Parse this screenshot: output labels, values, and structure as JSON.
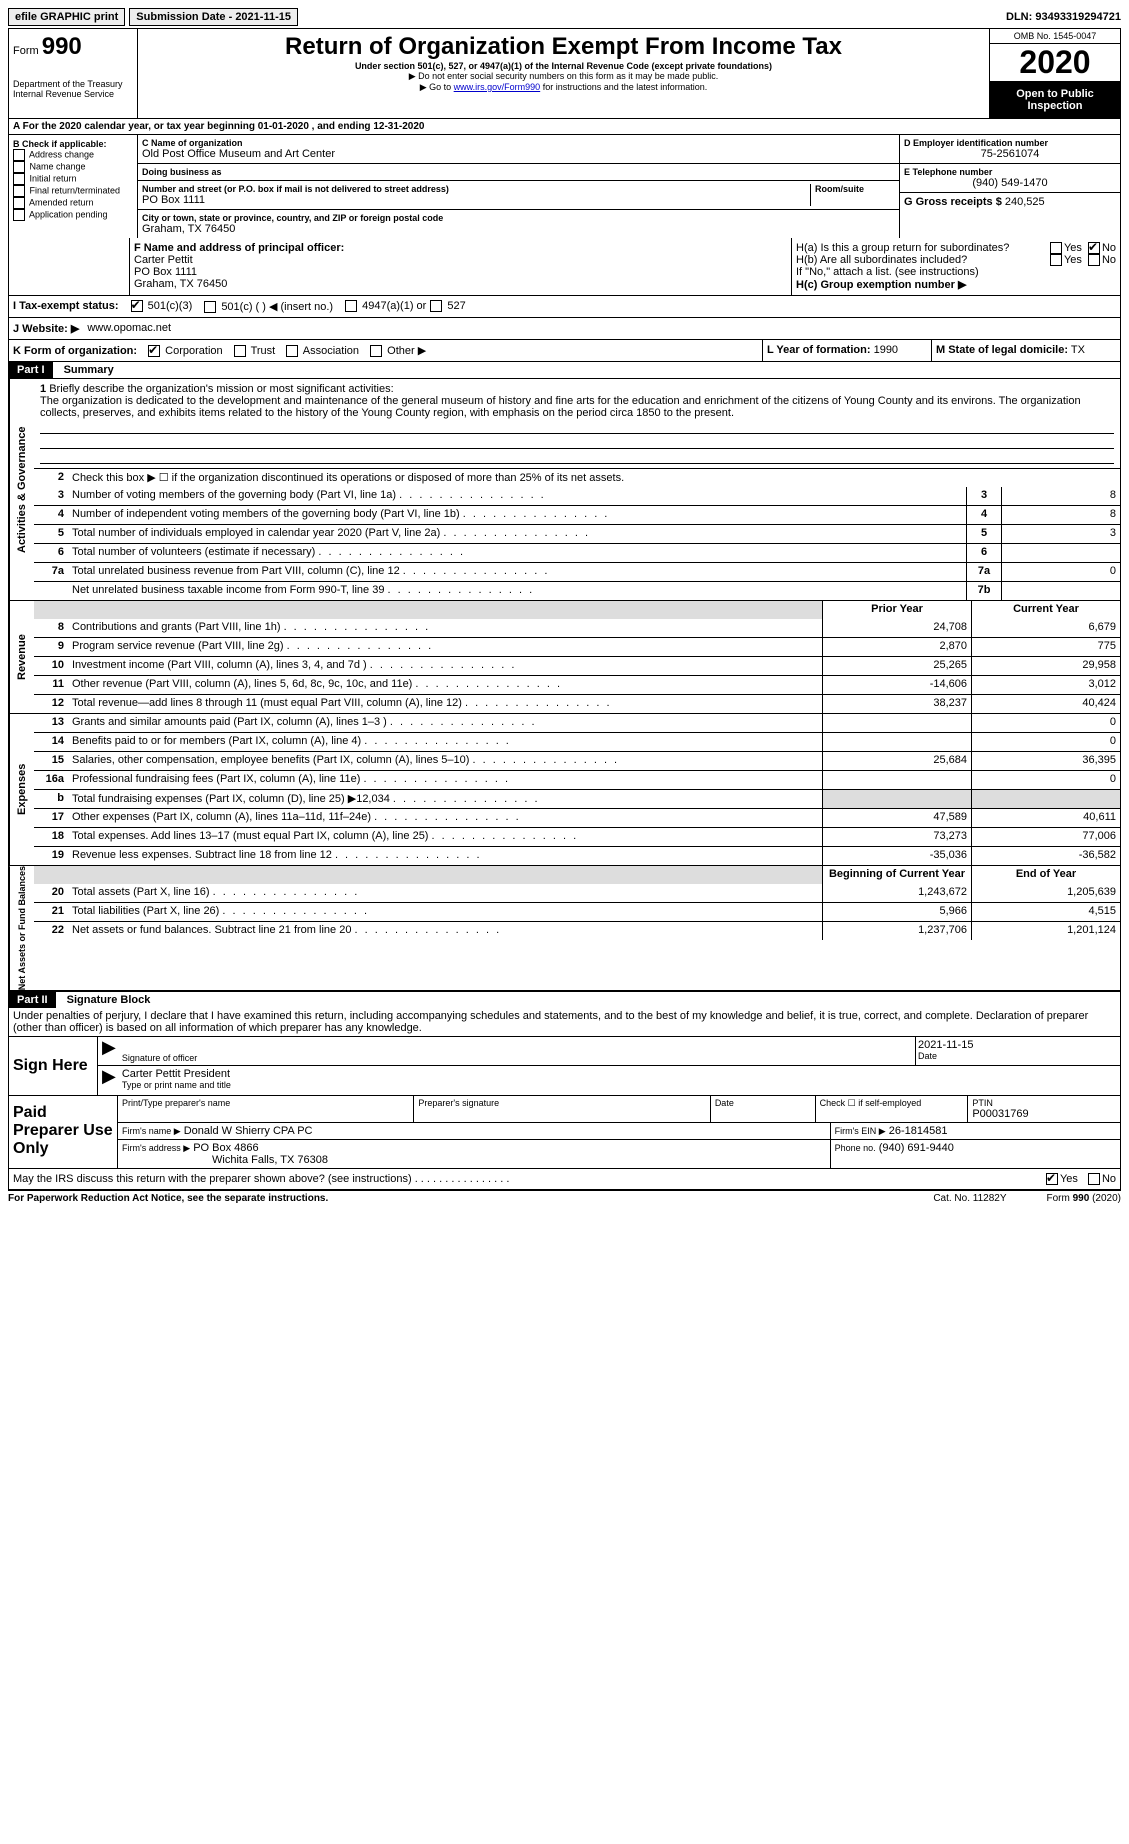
{
  "topbar": {
    "efile": "efile GRAPHIC print",
    "submission": "Submission Date - 2021-11-15",
    "dln": "DLN: 93493319294721"
  },
  "header": {
    "form_label": "Form",
    "form_num": "990",
    "dept": "Department of the Treasury",
    "irs": "Internal Revenue Service",
    "title": "Return of Organization Exempt From Income Tax",
    "subtitle": "Under section 501(c), 527, or 4947(a)(1) of the Internal Revenue Code (except private foundations)",
    "note1": "▶ Do not enter social security numbers on this form as it may be made public.",
    "note2": "▶ Go to www.irs.gov/Form990 for instructions and the latest information.",
    "omb": "OMB No. 1545-0047",
    "year": "2020",
    "open": "Open to Public Inspection"
  },
  "sectionA": "A For the 2020 calendar year, or tax year beginning 01-01-2020    , and ending 12-31-2020",
  "boxB": {
    "title": "B Check if applicable:",
    "opts": [
      "Address change",
      "Name change",
      "Initial return",
      "Final return/terminated",
      "Amended return",
      "Application pending"
    ]
  },
  "boxC": {
    "label": "C Name of organization",
    "name": "Old Post Office Museum and Art Center",
    "dba_label": "Doing business as",
    "addr_label": "Number and street (or P.O. box if mail is not delivered to street address)",
    "room_label": "Room/suite",
    "addr": "PO Box 1111",
    "city_label": "City or town, state or province, country, and ZIP or foreign postal code",
    "city": "Graham, TX  76450"
  },
  "boxD": {
    "label": "D Employer identification number",
    "val": "75-2561074"
  },
  "boxE": {
    "label": "E Telephone number",
    "val": "(940) 549-1470"
  },
  "boxG": {
    "label": "G Gross receipts $",
    "val": "240,525"
  },
  "boxF": {
    "label": "F Name and address of principal officer:",
    "name": "Carter Pettit",
    "addr1": "PO Box 1111",
    "addr2": "Graham, TX  76450"
  },
  "boxH": {
    "ha": "H(a)  Is this a group return for subordinates?",
    "hb": "H(b)  Are all subordinates included?",
    "hnote": "If \"No,\" attach a list. (see instructions)",
    "hc": "H(c)  Group exemption number ▶",
    "yes": "Yes",
    "no": "No"
  },
  "rowI": {
    "label": "I  Tax-exempt status:",
    "o1": "501(c)(3)",
    "o2": "501(c) (   ) ◀ (insert no.)",
    "o3": "4947(a)(1) or",
    "o4": "527"
  },
  "rowJ": {
    "label": "J  Website: ▶",
    "val": "www.opomac.net"
  },
  "rowK": {
    "label": "K Form of organization:",
    "o1": "Corporation",
    "o2": "Trust",
    "o3": "Association",
    "o4": "Other ▶"
  },
  "rowL": {
    "label": "L Year of formation:",
    "val": "1990"
  },
  "rowM": {
    "label": "M State of legal domicile:",
    "val": "TX"
  },
  "part1": {
    "header": "Part I",
    "title": "Summary",
    "l1": "Briefly describe the organization's mission or most significant activities:",
    "mission": "The organization is dedicated to the development and maintenance of the general museum of history and fine arts for the education and enrichment of the citizens of Young County and its environs. The organization collects, preserves, and exhibits items related to the history of the Young County region, with emphasis on the period circa 1850 to the present.",
    "l2": "Check this box ▶ ☐ if the organization discontinued its operations or disposed of more than 25% of its net assets.",
    "tabs": {
      "ag": "Activities & Governance",
      "rev": "Revenue",
      "exp": "Expenses",
      "net": "Net Assets or Fund Balances"
    },
    "lines_gov": [
      {
        "n": "3",
        "t": "Number of voting members of the governing body (Part VI, line 1a)",
        "box": "3",
        "v": "8"
      },
      {
        "n": "4",
        "t": "Number of independent voting members of the governing body (Part VI, line 1b)",
        "box": "4",
        "v": "8"
      },
      {
        "n": "5",
        "t": "Total number of individuals employed in calendar year 2020 (Part V, line 2a)",
        "box": "5",
        "v": "3"
      },
      {
        "n": "6",
        "t": "Total number of volunteers (estimate if necessary)",
        "box": "6",
        "v": ""
      },
      {
        "n": "7a",
        "t": "Total unrelated business revenue from Part VIII, column (C), line 12",
        "box": "7a",
        "v": "0"
      },
      {
        "n": "",
        "t": "Net unrelated business taxable income from Form 990-T, line 39",
        "box": "7b",
        "v": ""
      }
    ],
    "col_headers": {
      "py": "Prior Year",
      "cy": "Current Year"
    },
    "lines_rev": [
      {
        "n": "8",
        "t": "Contributions and grants (Part VIII, line 1h)",
        "py": "24,708",
        "cy": "6,679"
      },
      {
        "n": "9",
        "t": "Program service revenue (Part VIII, line 2g)",
        "py": "2,870",
        "cy": "775"
      },
      {
        "n": "10",
        "t": "Investment income (Part VIII, column (A), lines 3, 4, and 7d )",
        "py": "25,265",
        "cy": "29,958"
      },
      {
        "n": "11",
        "t": "Other revenue (Part VIII, column (A), lines 5, 6d, 8c, 9c, 10c, and 11e)",
        "py": "-14,606",
        "cy": "3,012"
      },
      {
        "n": "12",
        "t": "Total revenue—add lines 8 through 11 (must equal Part VIII, column (A), line 12)",
        "py": "38,237",
        "cy": "40,424"
      }
    ],
    "lines_exp": [
      {
        "n": "13",
        "t": "Grants and similar amounts paid (Part IX, column (A), lines 1–3 )",
        "py": "",
        "cy": "0"
      },
      {
        "n": "14",
        "t": "Benefits paid to or for members (Part IX, column (A), line 4)",
        "py": "",
        "cy": "0"
      },
      {
        "n": "15",
        "t": "Salaries, other compensation, employee benefits (Part IX, column (A), lines 5–10)",
        "py": "25,684",
        "cy": "36,395"
      },
      {
        "n": "16a",
        "t": "Professional fundraising fees (Part IX, column (A), line 11e)",
        "py": "",
        "cy": "0"
      },
      {
        "n": "b",
        "t": "Total fundraising expenses (Part IX, column (D), line 25) ▶12,034",
        "py": "",
        "cy": "",
        "shaded": true
      },
      {
        "n": "17",
        "t": "Other expenses (Part IX, column (A), lines 11a–11d, 11f–24e)",
        "py": "47,589",
        "cy": "40,611"
      },
      {
        "n": "18",
        "t": "Total expenses. Add lines 13–17 (must equal Part IX, column (A), line 25)",
        "py": "73,273",
        "cy": "77,006"
      },
      {
        "n": "19",
        "t": "Revenue less expenses. Subtract line 18 from line 12",
        "py": "-35,036",
        "cy": "-36,582"
      }
    ],
    "net_headers": {
      "b": "Beginning of Current Year",
      "e": "End of Year"
    },
    "lines_net": [
      {
        "n": "20",
        "t": "Total assets (Part X, line 16)",
        "py": "1,243,672",
        "cy": "1,205,639"
      },
      {
        "n": "21",
        "t": "Total liabilities (Part X, line 26)",
        "py": "5,966",
        "cy": "4,515"
      },
      {
        "n": "22",
        "t": "Net assets or fund balances. Subtract line 21 from line 20",
        "py": "1,237,706",
        "cy": "1,201,124"
      }
    ]
  },
  "part2": {
    "header": "Part II",
    "title": "Signature Block",
    "decl": "Under penalties of perjury, I declare that I have examined this return, including accompanying schedules and statements, and to the best of my knowledge and belief, it is true, correct, and complete. Declaration of preparer (other than officer) is based on all information of which preparer has any knowledge.",
    "sign_here": "Sign Here",
    "sig_officer": "Signature of officer",
    "date_label": "Date",
    "sig_date": "2021-11-15",
    "name_title": "Carter Pettit  President",
    "type_name": "Type or print name and title",
    "paid": "Paid Preparer Use Only",
    "prep_name_label": "Print/Type preparer's name",
    "prep_sig_label": "Preparer's signature",
    "check_self": "Check ☐ if self-employed",
    "ptin_label": "PTIN",
    "ptin": "P00031769",
    "firm_name_label": "Firm's name    ▶",
    "firm_name": "Donald W Shierry CPA PC",
    "firm_ein_label": "Firm's EIN ▶",
    "firm_ein": "26-1814581",
    "firm_addr_label": "Firm's address ▶",
    "firm_addr": "PO Box 4866",
    "firm_city": "Wichita Falls, TX  76308",
    "phone_label": "Phone no.",
    "phone": "(940) 691-9440",
    "discuss": "May the IRS discuss this return with the preparer shown above? (see instructions)",
    "yes": "Yes",
    "no": "No"
  },
  "footer": {
    "pra": "For Paperwork Reduction Act Notice, see the separate instructions.",
    "cat": "Cat. No. 11282Y",
    "form": "Form 990 (2020)"
  }
}
